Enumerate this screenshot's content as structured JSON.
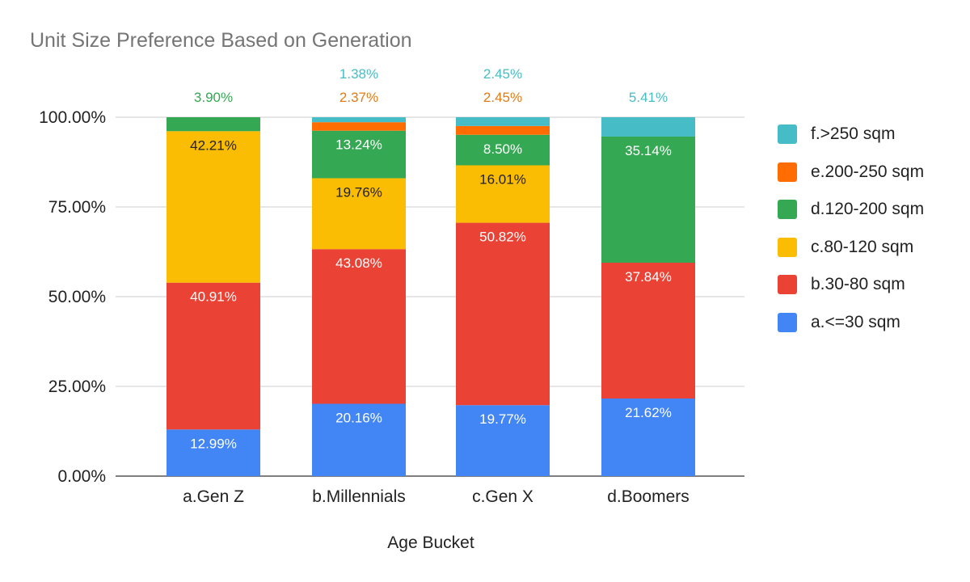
{
  "chart_data": {
    "type": "bar",
    "stacked": true,
    "normalized": true,
    "title": "Unit Size Preference Based on Generation",
    "xlabel": "Age Bucket",
    "ylabel": "",
    "ylim": [
      0,
      100
    ],
    "yticks": [
      "0.00%",
      "25.00%",
      "50.00%",
      "75.00%",
      "100.00%"
    ],
    "grid": true,
    "legend_position": "right",
    "categories": [
      "a.Gen Z",
      "b.Millennials",
      "c.Gen X",
      "d.Boomers"
    ],
    "series": [
      {
        "name": "a.<=30 sqm",
        "color": "#4285f4",
        "values": [
          12.99,
          20.16,
          19.77,
          21.62
        ],
        "labels": [
          "12.99%",
          "20.16%",
          "19.77%",
          "21.62%"
        ]
      },
      {
        "name": "b.30-80 sqm",
        "color": "#ea4335",
        "values": [
          40.91,
          43.08,
          50.82,
          37.84
        ],
        "labels": [
          "40.91%",
          "43.08%",
          "50.82%",
          "37.84%"
        ]
      },
      {
        "name": "c.80-120 sqm",
        "color": "#fbbc04",
        "values": [
          42.21,
          19.76,
          16.01,
          0
        ],
        "labels": [
          "42.21%",
          "19.76%",
          "16.01%",
          ""
        ]
      },
      {
        "name": "d.120-200 sqm",
        "color": "#34a853",
        "values": [
          3.9,
          13.24,
          8.5,
          35.14
        ],
        "labels": [
          "3.90%",
          "13.24%",
          "8.50%",
          "35.14%"
        ]
      },
      {
        "name": "e.200-250 sqm",
        "color": "#ff6d01",
        "values": [
          0,
          2.37,
          2.45,
          0
        ],
        "labels": [
          "",
          "2.37%",
          "2.45%",
          ""
        ]
      },
      {
        "name": "f.>250 sqm",
        "color": "#46bdc6",
        "values": [
          0,
          1.38,
          2.45,
          5.41
        ],
        "labels": [
          "",
          "1.38%",
          "2.45%",
          "5.41%"
        ]
      }
    ]
  }
}
